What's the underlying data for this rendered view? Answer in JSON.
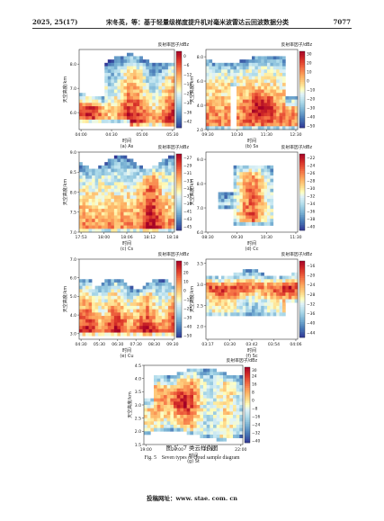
{
  "header": {
    "left": "2025, 25(17)",
    "title": "宋冬英，等：基于轻量级梯度提升机对毫米波雷达云回波数据分类",
    "right": "7077"
  },
  "caption": {
    "cn": "图 5　7 类云样例图",
    "en": "Fig. 5　Seven types of cloud sample diagram"
  },
  "footer": "投稿网址：www. stae. com. cn",
  "chart_data": [
    {
      "type": "heatmap",
      "sublabel": "(a) As",
      "xlabel": "时间",
      "ylabel": "天空高度/km",
      "colorbar_label": "反射率因子/dBz",
      "xticks": [
        "04:00",
        "04:30",
        "05:00",
        "05:30"
      ],
      "yticks": [
        "6.0",
        "7.0",
        "8.0"
      ],
      "ylim": [
        5.3,
        8.6
      ],
      "cbar_ticks": [
        "0",
        "−6",
        "−12",
        "−18",
        "−24",
        "−30",
        "−36",
        "−42"
      ],
      "vmin": -46,
      "vmax": 3,
      "colormap": "RdYlBu_r"
    },
    {
      "type": "heatmap",
      "sublabel": "(b) Ss",
      "xlabel": "时间",
      "ylabel": "天空高度/km",
      "colorbar_label": "反射率因子/dBz",
      "xticks": [
        "09:30",
        "10:30",
        "11:30",
        "12:30"
      ],
      "yticks": [
        "2.0",
        "4.0",
        "6.0",
        "8.0"
      ],
      "ylim": [
        2.0,
        8.6
      ],
      "cbar_ticks": [
        "30",
        "20",
        "10",
        "0",
        "−10",
        "−20",
        "−30",
        "−40",
        "−50"
      ],
      "vmin": -52,
      "vmax": 33,
      "colormap": "RdYlBu_r"
    },
    {
      "type": "heatmap",
      "sublabel": "(c) Cs",
      "xlabel": "时间",
      "ylabel": "天空高度/km",
      "colorbar_label": "反射率因子/dBz",
      "xticks": [
        "17:53",
        "18:00",
        "18:06",
        "18:12",
        "18:18"
      ],
      "yticks": [
        "7.0",
        "7.5",
        "8.0",
        "8.5",
        "9.0"
      ],
      "ylim": [
        7.0,
        9.0
      ],
      "cbar_ticks": [
        "−27",
        "−29",
        "−31",
        "−33",
        "−35",
        "−37",
        "−39",
        "−41",
        "−43",
        "−45"
      ],
      "vmin": -46,
      "vmax": -26,
      "colormap": "RdYlBu_r"
    },
    {
      "type": "heatmap",
      "sublabel": "(d) Cc",
      "xlabel": "时间",
      "ylabel": "天空高度/km",
      "colorbar_label": "反射率因子/dBz",
      "xticks": [
        "08:30",
        "09:30",
        "10:30",
        "11:30"
      ],
      "yticks": [
        "6.0",
        "7.0",
        "8.0",
        "9.0"
      ],
      "ylim": [
        6.0,
        9.3
      ],
      "cbar_ticks": [
        "−22",
        "−24",
        "−26",
        "−28",
        "−30",
        "−32",
        "−34",
        "−36",
        "−38",
        "−40"
      ],
      "vmin": -41,
      "vmax": -21,
      "colormap": "RdYlBu_r"
    },
    {
      "type": "heatmap",
      "sublabel": "(e) Cu",
      "xlabel": "时间",
      "ylabel": "天空高度/km",
      "colorbar_label": "反射率因子/dBz",
      "xticks": [
        "04:30",
        "05:30",
        "06:30",
        "07:30",
        "08:30",
        "09:30"
      ],
      "yticks": [
        "3.0",
        "4.0",
        "5.0",
        "6.0",
        "7.0"
      ],
      "ylim": [
        2.7,
        7.0
      ],
      "cbar_ticks": [
        "30",
        "20",
        "10",
        "0",
        "−10",
        "−20",
        "−30",
        "−40",
        "−50"
      ],
      "vmin": -52,
      "vmax": 33,
      "colormap": "RdYlBu_r"
    },
    {
      "type": "heatmap",
      "sublabel": "(f) Sc",
      "xlabel": "时间",
      "ylabel": "天空高度/km",
      "colorbar_label": "反射率因子/dBz",
      "xticks": [
        "03:17",
        "03:30",
        "03:42",
        "03:54",
        "04:06"
      ],
      "yticks": [
        "2.0",
        "2.5",
        "3.0",
        "3.5"
      ],
      "ylim": [
        1.7,
        3.6
      ],
      "cbar_ticks": [
        "−16",
        "−20",
        "−24",
        "−28",
        "−32",
        "−36",
        "−40",
        "−44"
      ],
      "vmin": -46,
      "vmax": -14,
      "colormap": "RdYlBu_r"
    },
    {
      "type": "heatmap",
      "sublabel": "(g) St",
      "xlabel": "时间",
      "ylabel": "天空高度/km",
      "colorbar_label": "反射率因子/dBz",
      "xticks": [
        "19:00",
        "20:00",
        "21:00",
        "22:00"
      ],
      "yticks": [
        "1.5",
        "2.0",
        "2.5",
        "3.0",
        "3.5",
        "4.0",
        "4.5"
      ],
      "ylim": [
        1.5,
        4.5
      ],
      "cbar_ticks": [
        "30",
        "24",
        "16",
        "8",
        "0",
        "−8",
        "−16",
        "−24",
        "−32",
        "−40"
      ],
      "vmin": -42,
      "vmax": 33,
      "colormap": "RdYlBu_r"
    }
  ]
}
